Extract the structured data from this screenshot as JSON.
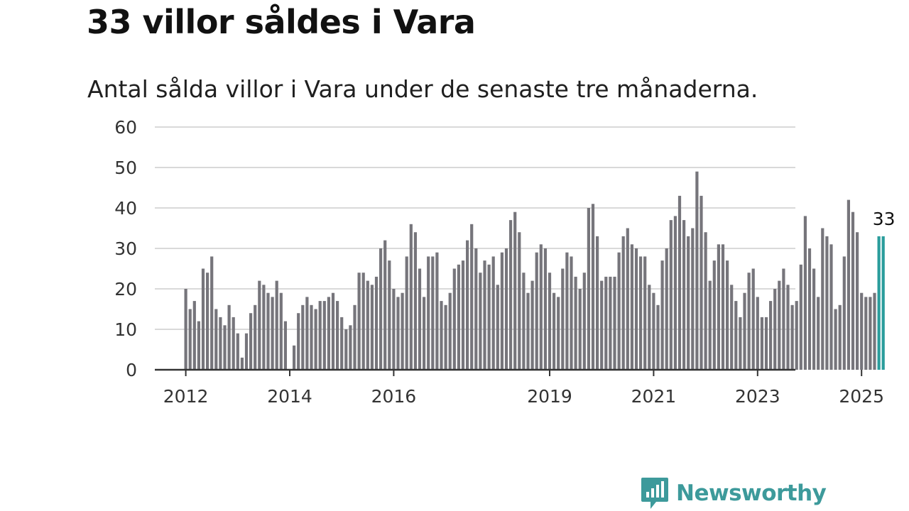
{
  "title": "33 villor såldes i Vara",
  "subtitle": "Antal sålda villor i Vara under de senaste tre månaderna.",
  "brand": {
    "name": "Newsworthy",
    "color": "#3d9a9b",
    "icon": "bar-chart-speech-bubble-icon"
  },
  "colors": {
    "bar": "#76757b",
    "highlight": "#2a9d9c",
    "grid": "#d9d9d9",
    "axis": "#333333"
  },
  "chart_data": {
    "type": "bar",
    "title": "33 villor såldes i Vara",
    "subtitle": "Antal sålda villor i Vara under de senaste tre månaderna.",
    "xlabel": "",
    "ylabel": "",
    "ylim": [
      0,
      60
    ],
    "yticks": [
      0,
      10,
      20,
      30,
      40,
      50,
      60
    ],
    "x_start": "2012-01",
    "x_end": "2025-06",
    "xticks": [
      {
        "label": "2012",
        "date": "2012-01"
      },
      {
        "label": "2014",
        "date": "2014-01"
      },
      {
        "label": "2016",
        "date": "2016-01"
      },
      {
        "label": "2019",
        "date": "2019-01"
      },
      {
        "label": "2021",
        "date": "2021-01"
      },
      {
        "label": "2023",
        "date": "2023-01"
      },
      {
        "label": "2025",
        "date": "2025-01"
      }
    ],
    "grid": true,
    "highlight_last": 2,
    "annotation": {
      "text": "33",
      "date": "2025-06"
    },
    "values": [
      20,
      15,
      17,
      12,
      25,
      24,
      28,
      15,
      13,
      11,
      16,
      13,
      9,
      3,
      9,
      14,
      16,
      22,
      21,
      19,
      18,
      22,
      19,
      12,
      0,
      6,
      14,
      16,
      18,
      16,
      15,
      17,
      17,
      18,
      19,
      17,
      13,
      10,
      11,
      16,
      24,
      24,
      22,
      21,
      23,
      30,
      32,
      27,
      20,
      18,
      19,
      28,
      36,
      34,
      25,
      18,
      28,
      28,
      29,
      17,
      16,
      19,
      25,
      26,
      27,
      32,
      36,
      30,
      24,
      27,
      26,
      28,
      21,
      29,
      30,
      37,
      39,
      34,
      24,
      19,
      22,
      29,
      31,
      30,
      24,
      19,
      18,
      25,
      29,
      28,
      23,
      20,
      24,
      40,
      41,
      33,
      22,
      23,
      23,
      23,
      29,
      33,
      35,
      31,
      30,
      28,
      28,
      21,
      19,
      16,
      27,
      30,
      37,
      38,
      43,
      37,
      33,
      35,
      49,
      43,
      34,
      22,
      27,
      31,
      31,
      27,
      21,
      17,
      13,
      19,
      24,
      25,
      18,
      13,
      13,
      17,
      20,
      22,
      25,
      21,
      16,
      17,
      26,
      38,
      30,
      25,
      18,
      35,
      33,
      31,
      15,
      16,
      28,
      42,
      39,
      34,
      19,
      18,
      18,
      19,
      33,
      33
    ]
  }
}
